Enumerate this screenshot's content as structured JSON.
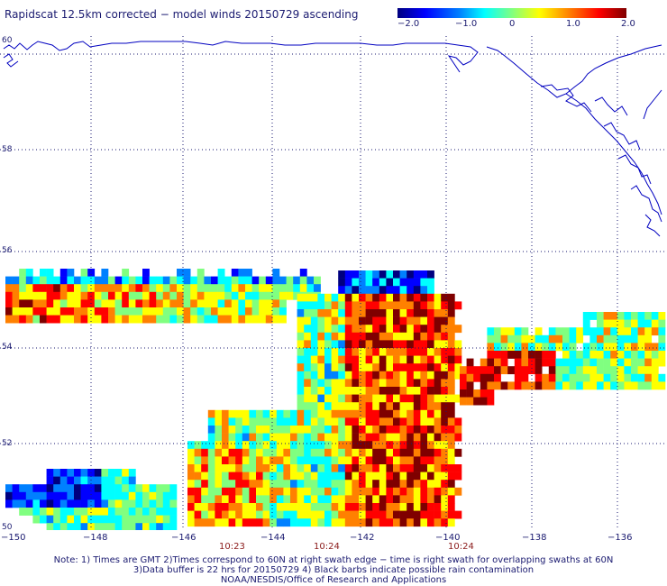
{
  "title": "Rapidscat 12.5km corrected − model winds 20150729 ascending",
  "colorbar": {
    "ticks": [
      "−2.0",
      "−1.0",
      "0",
      "1.0",
      "2.0"
    ],
    "colors": [
      "#00007f",
      "#0000ff",
      "#0080ff",
      "#00ffff",
      "#80ff80",
      "#ffff00",
      "#ff8000",
      "#ff0000",
      "#7f0000"
    ]
  },
  "map": {
    "lat_labels": [
      "60",
      "58",
      "56",
      "54",
      "52",
      "50"
    ],
    "lon_labels": [
      "−150",
      "−148",
      "−146",
      "−144",
      "−142",
      "−140",
      "−138",
      "−136"
    ],
    "grid": "dotted",
    "coastline_color": "#0000c0",
    "time_labels": [
      "10:23",
      "10:24",
      "10:24"
    ]
  },
  "notes": {
    "line1": "Note: 1) Times are GMT 2)Times correspond to 60N at right swath edge − time is right swath for overlapping swaths at 60N",
    "line2": "3)Data buffer is 22 hrs for 20150729 4) Black barbs indicate possible rain contamination",
    "line3": "NOAA/NESDIS/Office of Research and Applications"
  }
}
